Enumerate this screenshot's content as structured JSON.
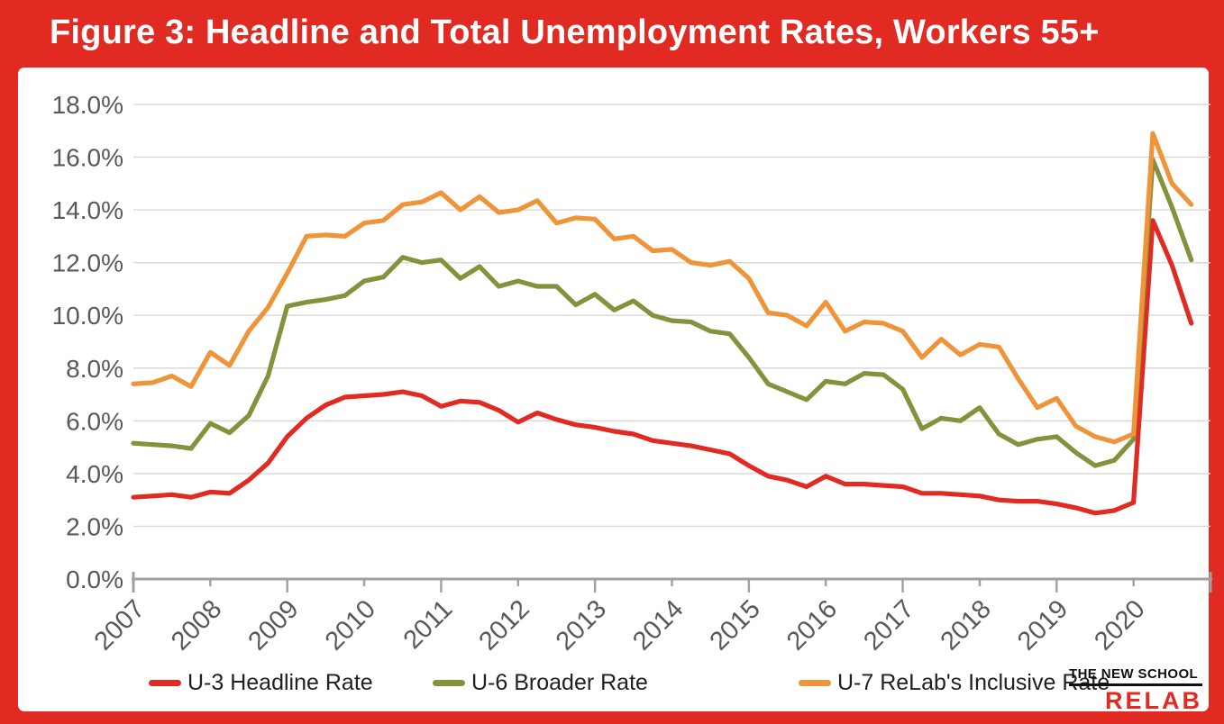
{
  "title": "Figure 3: Headline and Total Unemployment Rates, Workers 55+",
  "logo": {
    "line1": "THE NEW SCHOOL",
    "line2": "RELAB"
  },
  "colors": {
    "frame_red": "#E02A22",
    "gridline": "#D9D9D9",
    "axis": "#A0A0A0",
    "tick_label": "#595959",
    "legend_text": "#212121"
  },
  "chart_data": {
    "type": "line",
    "title": "Figure 3: Headline and Total Unemployment Rates, Workers 55+",
    "xlabel": "",
    "ylabel": "",
    "grid": true,
    "legend_position": "bottom",
    "x_axis": {
      "labels": [
        "2007",
        "2008",
        "2009",
        "2010",
        "2011",
        "2012",
        "2013",
        "2014",
        "2015",
        "2016",
        "2017",
        "2018",
        "2019",
        "2020"
      ],
      "points_per_year": 4,
      "start_year": 2007,
      "end_year": 2021
    },
    "y_axis": {
      "min": 0,
      "max": 18,
      "step": 2,
      "labels": [
        "0.0%",
        "2.0%",
        "4.0%",
        "6.0%",
        "8.0%",
        "10.0%",
        "12.0%",
        "14.0%",
        "16.0%",
        "18.0%"
      ]
    },
    "series": [
      {
        "name": "U-3 Headline Rate",
        "color": "#E02A22",
        "values": [
          3.1,
          3.15,
          3.2,
          3.1,
          3.3,
          3.25,
          3.75,
          4.4,
          5.4,
          6.1,
          6.6,
          6.9,
          6.95,
          7.0,
          7.1,
          6.95,
          6.55,
          6.75,
          6.7,
          6.4,
          5.95,
          6.3,
          6.05,
          5.85,
          5.75,
          5.6,
          5.5,
          5.25,
          5.15,
          5.05,
          4.9,
          4.75,
          4.3,
          3.9,
          3.75,
          3.5,
          3.9,
          3.6,
          3.6,
          3.55,
          3.5,
          3.25,
          3.25,
          3.2,
          3.15,
          3.0,
          2.95,
          2.95,
          2.85,
          2.7,
          2.5,
          2.6,
          2.9,
          13.6,
          11.9,
          9.7
        ]
      },
      {
        "name": "U-6 Broader Rate",
        "color": "#87903B",
        "values": [
          5.15,
          5.1,
          5.05,
          4.95,
          5.9,
          5.55,
          6.2,
          7.7,
          10.35,
          10.5,
          10.6,
          10.75,
          11.3,
          11.45,
          12.2,
          12.0,
          12.1,
          11.4,
          11.85,
          11.1,
          11.3,
          11.1,
          11.1,
          10.4,
          10.8,
          10.2,
          10.55,
          10.0,
          9.8,
          9.75,
          9.4,
          9.3,
          8.4,
          7.4,
          7.1,
          6.8,
          7.5,
          7.4,
          7.8,
          7.75,
          7.2,
          5.7,
          6.1,
          6.0,
          6.5,
          5.5,
          5.1,
          5.3,
          5.4,
          4.8,
          4.3,
          4.5,
          5.3,
          15.9,
          14.1,
          12.1
        ]
      },
      {
        "name": "U-7 ReLab's Inclusive Rate",
        "color": "#F0943A",
        "values": [
          7.4,
          7.45,
          7.7,
          7.3,
          8.6,
          8.1,
          9.4,
          10.3,
          11.6,
          13.0,
          13.05,
          13.0,
          13.5,
          13.6,
          14.2,
          14.3,
          14.65,
          14.0,
          14.5,
          13.9,
          14.0,
          14.35,
          13.5,
          13.7,
          13.65,
          12.9,
          13.0,
          12.45,
          12.5,
          12.0,
          11.9,
          12.05,
          11.4,
          10.1,
          10.0,
          9.6,
          10.5,
          9.4,
          9.75,
          9.7,
          9.4,
          8.4,
          9.1,
          8.5,
          8.9,
          8.8,
          7.6,
          6.5,
          6.85,
          5.8,
          5.4,
          5.2,
          5.5,
          16.9,
          15.0,
          14.2
        ]
      }
    ]
  }
}
